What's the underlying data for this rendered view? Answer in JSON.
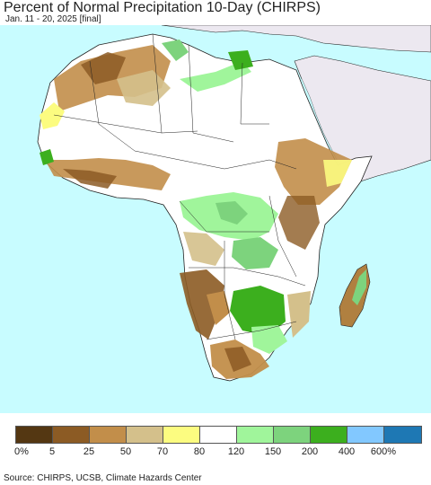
{
  "header": {
    "title": "Percent of Normal Precipitation 10-Day (CHIRPS)",
    "subtitle": "Jan. 11 - 20, 2025 [final]"
  },
  "colors": {
    "ocean": "#c8fcff",
    "no_data_land": "#ece8f0",
    "border": "#222222"
  },
  "legend": {
    "colors": [
      "#543712",
      "#8c5b24",
      "#c28e4a",
      "#d4c08b",
      "#fcfc80",
      "#ffffff",
      "#a0f59b",
      "#7dd37d",
      "#3caf1e",
      "#82c8ff",
      "#1e78b4"
    ],
    "ticks": [
      "0%",
      "5",
      "25",
      "50",
      "70",
      "80",
      "120",
      "150",
      "200",
      "400",
      "600%"
    ]
  },
  "footer": {
    "source": "Source: CHIRPS, UCSB, Climate Hazards Center"
  }
}
